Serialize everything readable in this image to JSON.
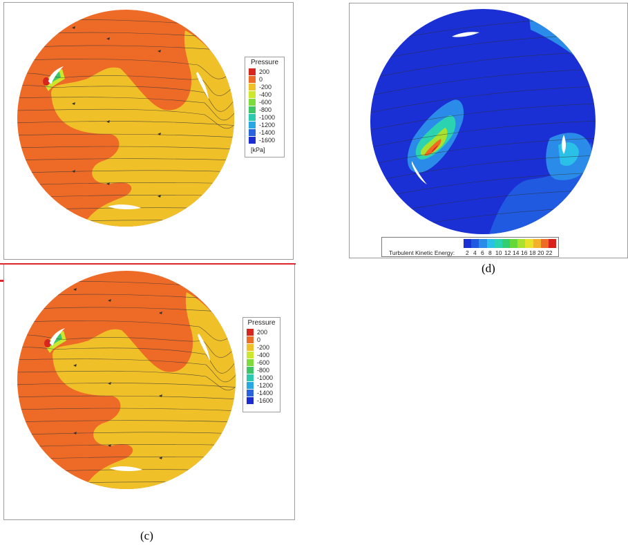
{
  "captions": {
    "c": "(c)",
    "d": "(d)"
  },
  "pressure_legend": {
    "title": "Pressure",
    "levels": [
      "200",
      "0",
      "-200",
      "-400",
      "-600",
      "-800",
      "-1000",
      "-1200",
      "-1400",
      "-1600"
    ],
    "colors": [
      "#d7261e",
      "#ee6a27",
      "#f0c028",
      "#cde82c",
      "#7ddc3c",
      "#3ec565",
      "#2cc9b1",
      "#28a7e2",
      "#2a63df",
      "#1d2bd2"
    ],
    "unit": "[kPa]"
  },
  "tke_legend": {
    "label": "Turbulent Kinetic Energy:",
    "ticks": [
      "2",
      "4",
      "6",
      "8",
      "10",
      "12",
      "14",
      "16",
      "18",
      "20",
      "22"
    ],
    "colors": [
      "#1a2fd4",
      "#1f5ae0",
      "#2a8ce8",
      "#2bc0e8",
      "#2bd3b0",
      "#32cf72",
      "#66d739",
      "#a9e12e",
      "#e6e22a",
      "#f2b12a",
      "#ef6a25",
      "#d8211c"
    ]
  },
  "colors": {
    "pressure_high": "#ee6a27",
    "pressure_mid": "#f0c028",
    "tke_background": "#1a2fd4",
    "separator": "#d9262c"
  }
}
